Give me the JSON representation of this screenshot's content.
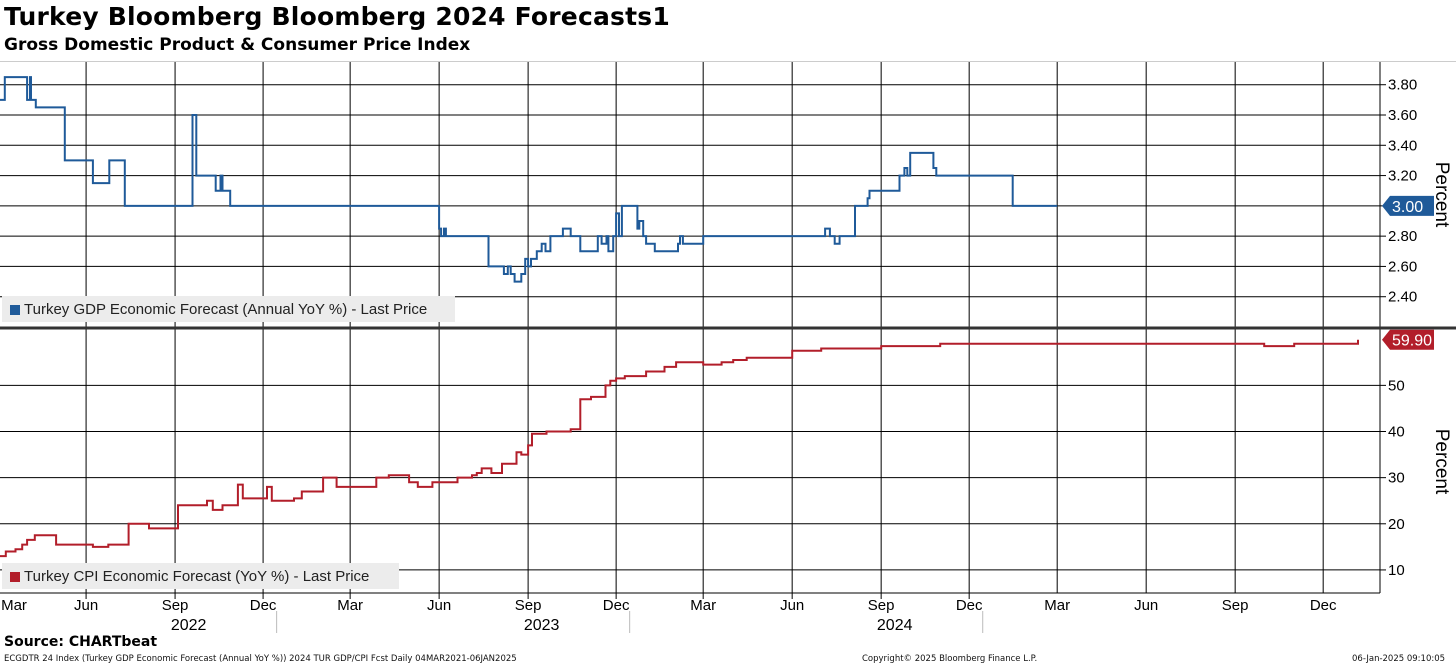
{
  "header": {
    "title": "Turkey Bloomberg Bloomberg 2024 Forecasts1",
    "subtitle": "Gross Domestic Product & Consumer Price Index"
  },
  "footer": {
    "source": "Source: CHARTbeat",
    "left": "ECGDTR 24 Index (Turkey GDP Economic Forecast (Annual YoY %)) 2024 TUR GDP/CPI Fcst  Daily 04MAR2021-06JAN2025",
    "center": "Copyright© 2025 Bloomberg Finance L.P.",
    "right": "06-Jan-2025 09:10:05"
  },
  "chart_data": [
    {
      "type": "line",
      "panel": "top",
      "ylabel": "Percent",
      "ylim": [
        2.2,
        3.95
      ],
      "yticks": [
        "2.40",
        "2.60",
        "2.80",
        "3.00",
        "3.20",
        "3.40",
        "3.60",
        "3.80"
      ],
      "legend": "Turkey GDP Economic Forecast (Annual YoY %) - Last Price",
      "last_value_label": "3.00",
      "color": "#1f5a99",
      "series": [
        {
          "name": "Turkey GDP Economic Forecast (Annual YoY %) - Last Price",
          "x": [
            "2021-03-04",
            "2021-03-09",
            "2021-03-31",
            "2021-04-01",
            "2021-04-04",
            "2021-04-05",
            "2021-04-08",
            "2021-04-10",
            "2021-05-07",
            "2021-05-10",
            "2021-05-13",
            "2021-05-20",
            "2021-06-03",
            "2021-06-08",
            "2021-06-12",
            "2021-06-25",
            "2021-06-28",
            "2021-07-10",
            "2021-07-11",
            "2021-07-13",
            "2021-08-05",
            "2021-08-09",
            "2021-08-12",
            "2021-09-16",
            "2021-09-19",
            "2021-09-20",
            "2021-09-23",
            "2021-09-26",
            "2021-10-10",
            "2021-10-13",
            "2021-10-18",
            "2021-10-20",
            "2021-10-25",
            "2021-10-28",
            "2021-10-30",
            "2021-11-01",
            "2022-05-28",
            "2022-06-01",
            "2022-06-03",
            "2022-06-06",
            "2022-06-08",
            "2022-06-10",
            "2022-07-20",
            "2022-07-22",
            "2022-08-05",
            "2022-08-07",
            "2022-08-11",
            "2022-08-14",
            "2022-08-18",
            "2022-08-25",
            "2022-08-29",
            "2022-09-01",
            "2022-09-04",
            "2022-09-07",
            "2022-09-10",
            "2022-09-15",
            "2022-09-19",
            "2022-09-24",
            "2022-10-02",
            "2022-10-07",
            "2022-10-15",
            "2022-10-25",
            "2022-11-04",
            "2022-11-12",
            "2022-11-16",
            "2022-11-21",
            "2022-11-23",
            "2022-11-28",
            "2022-12-01",
            "2022-12-04",
            "2022-12-07",
            "2022-12-23",
            "2022-12-25",
            "2022-12-29",
            "2023-01-01",
            "2023-01-05",
            "2023-01-10",
            "2023-02-01",
            "2023-02-03",
            "2023-02-05",
            "2023-02-08",
            "2023-02-28",
            "2023-03-01",
            "2023-07-01",
            "2023-07-05",
            "2023-07-10",
            "2023-07-15",
            "2023-07-20",
            "2023-07-25",
            "2023-08-01",
            "2023-08-05",
            "2023-08-09",
            "2023-08-12",
            "2023-08-15",
            "2023-08-18",
            "2023-08-20",
            "2023-08-25",
            "2023-09-01",
            "2023-09-20",
            "2023-09-22",
            "2023-09-25",
            "2023-09-28",
            "2023-10-01",
            "2023-10-25",
            "2023-10-28",
            "2023-11-01",
            "2024-01-15",
            "2024-03-01"
          ],
          "y": [
            3.7,
            3.85,
            3.85,
            3.7,
            3.85,
            3.7,
            3.7,
            3.65,
            3.65,
            3.3,
            3.3,
            3.3,
            3.3,
            3.15,
            3.15,
            3.3,
            3.3,
            3.3,
            3.0,
            3.0,
            3.0,
            3.0,
            3.0,
            3.0,
            3.6,
            3.6,
            3.2,
            3.2,
            3.2,
            3.1,
            3.2,
            3.1,
            3.1,
            3.0,
            3.0,
            3.0,
            3.0,
            2.85,
            2.8,
            2.85,
            2.8,
            2.8,
            2.8,
            2.6,
            2.6,
            2.55,
            2.6,
            2.55,
            2.5,
            2.55,
            2.65,
            2.6,
            2.65,
            2.65,
            2.7,
            2.75,
            2.7,
            2.8,
            2.8,
            2.85,
            2.8,
            2.7,
            2.7,
            2.8,
            2.75,
            2.8,
            2.7,
            2.8,
            2.95,
            2.8,
            3.0,
            2.85,
            2.9,
            2.8,
            2.75,
            2.75,
            2.7,
            2.7,
            2.75,
            2.8,
            2.75,
            2.75,
            2.8,
            2.8,
            2.85,
            2.8,
            2.75,
            2.8,
            2.8,
            2.8,
            3.0,
            3.0,
            3.0,
            3.0,
            3.05,
            3.1,
            3.1,
            3.1,
            3.2,
            3.2,
            3.25,
            3.2,
            3.35,
            3.25,
            3.2,
            3.2,
            3.0,
            3.0
          ]
        }
      ]
    },
    {
      "type": "line",
      "panel": "bottom",
      "ylabel": "Percent",
      "ylim": [
        5,
        62
      ],
      "yticks": [
        "10",
        "20",
        "30",
        "40",
        "50"
      ],
      "legend": "Turkey CPI Economic Forecast (YoY %) - Last Price",
      "last_value_label": "59.90",
      "color": "#b21e2a",
      "series": [
        {
          "name": "Turkey CPI Economic Forecast (YoY %) - Last Price",
          "x": [
            "2021-03-04",
            "2021-03-10",
            "2021-03-20",
            "2021-03-27",
            "2021-04-01",
            "2021-04-09",
            "2021-04-20",
            "2021-05-01",
            "2021-05-04",
            "2021-05-20",
            "2021-06-08",
            "2021-06-10",
            "2021-06-20",
            "2021-06-24",
            "2021-06-28",
            "2021-07-01",
            "2021-07-15",
            "2021-08-01",
            "2021-08-05",
            "2021-09-01",
            "2021-09-04",
            "2021-09-07",
            "2021-09-12",
            "2021-10-01",
            "2021-10-04",
            "2021-10-10",
            "2021-10-20",
            "2021-11-01",
            "2021-11-05",
            "2021-11-10",
            "2021-11-25",
            "2021-12-05",
            "2021-12-10",
            "2021-12-28",
            "2022-01-02",
            "2022-01-10",
            "2022-02-01",
            "2022-02-07",
            "2022-02-15",
            "2022-03-01",
            "2022-03-20",
            "2022-03-28",
            "2022-04-01",
            "2022-04-05",
            "2022-04-10",
            "2022-05-01",
            "2022-05-10",
            "2022-05-25",
            "2022-06-05",
            "2022-06-20",
            "2022-07-01",
            "2022-07-05",
            "2022-07-10",
            "2022-07-15",
            "2022-07-25",
            "2022-08-01",
            "2022-08-05",
            "2022-08-20",
            "2022-08-25",
            "2022-09-01",
            "2022-09-05",
            "2022-09-20",
            "2022-10-05",
            "2022-10-10",
            "2022-10-15",
            "2022-10-25",
            "2022-11-05",
            "2022-11-15",
            "2022-11-20",
            "2022-11-25",
            "2022-12-01",
            "2022-12-10",
            "2023-01-01",
            "2023-01-20",
            "2023-02-01",
            "2023-02-15",
            "2023-03-01",
            "2023-03-20",
            "2023-04-01",
            "2023-04-15",
            "2023-05-01",
            "2023-06-01",
            "2023-06-15",
            "2023-07-01",
            "2023-08-01",
            "2023-08-15",
            "2023-09-01",
            "2023-09-15",
            "2023-10-01",
            "2023-10-15",
            "2023-11-01",
            "2023-12-01",
            "2024-01-01",
            "2024-02-01",
            "2024-03-01",
            "2024-04-01",
            "2024-05-01",
            "2024-06-01",
            "2024-07-01",
            "2024-08-01",
            "2024-09-01",
            "2024-10-01",
            "2024-11-01",
            "2024-12-01",
            "2024-12-20",
            "2025-01-06"
          ],
          "y": [
            13.0,
            14.0,
            14.5,
            15.5,
            16.5,
            17.5,
            17.5,
            15.5,
            15.5,
            15.5,
            15.0,
            15.0,
            15.0,
            15.5,
            15.5,
            15.5,
            20.0,
            20.0,
            19.0,
            19.0,
            24.0,
            24.0,
            24.0,
            24.0,
            25.0,
            23.0,
            24.0,
            24.0,
            28.5,
            25.5,
            25.5,
            28.0,
            25.0,
            25.0,
            25.5,
            27.0,
            30.0,
            30.0,
            28.0,
            28.0,
            28.0,
            30.0,
            30.0,
            30.0,
            30.5,
            29.0,
            28.0,
            29.0,
            29.0,
            30.0,
            30.0,
            30.5,
            31.0,
            32.0,
            31.0,
            31.0,
            33.0,
            35.5,
            35.0,
            37.0,
            39.5,
            40.0,
            40.0,
            40.0,
            40.5,
            47.0,
            47.5,
            47.5,
            50.0,
            51.0,
            51.5,
            52.0,
            53.0,
            54.0,
            55.0,
            55.0,
            54.5,
            55.0,
            55.5,
            56.0,
            56.0,
            57.5,
            57.5,
            58.0,
            58.0,
            58.0,
            58.5,
            58.5,
            58.5,
            58.5,
            59.0,
            59.0,
            59.0,
            59.0,
            59.0,
            59.0,
            59.0,
            59.0,
            59.0,
            59.0,
            59.0,
            58.5,
            59.0,
            59.0,
            59.0,
            59.9
          ]
        }
      ]
    }
  ],
  "x_axis": {
    "start": "2021-03-04",
    "end": "2025-01-06",
    "month_labels": [
      {
        "label": "Mar",
        "date": "2021-03-01"
      },
      {
        "label": "Jun",
        "date": "2021-06-01"
      },
      {
        "label": "Sep",
        "date": "2021-09-01"
      },
      {
        "label": "Dec",
        "date": "2021-12-01"
      },
      {
        "label": "Mar",
        "date": "2022-03-01"
      },
      {
        "label": "Jun",
        "date": "2022-06-01"
      },
      {
        "label": "Sep",
        "date": "2022-09-01"
      },
      {
        "label": "Dec",
        "date": "2022-12-01"
      },
      {
        "label": "Mar",
        "date": "2023-03-01"
      },
      {
        "label": "Jun",
        "date": "2023-06-01"
      },
      {
        "label": "Sep",
        "date": "2023-09-01"
      },
      {
        "label": "Dec",
        "date": "2023-12-01"
      }
    ],
    "year_labels": [
      {
        "label": "2022",
        "date": "2021-07-15"
      },
      {
        "label": "2023",
        "date": "2022-07-15"
      },
      {
        "label": "2024",
        "date": "2023-07-15"
      }
    ],
    "year_dividers": [
      "2021-12-15",
      "2022-12-15",
      "2023-12-15"
    ]
  }
}
